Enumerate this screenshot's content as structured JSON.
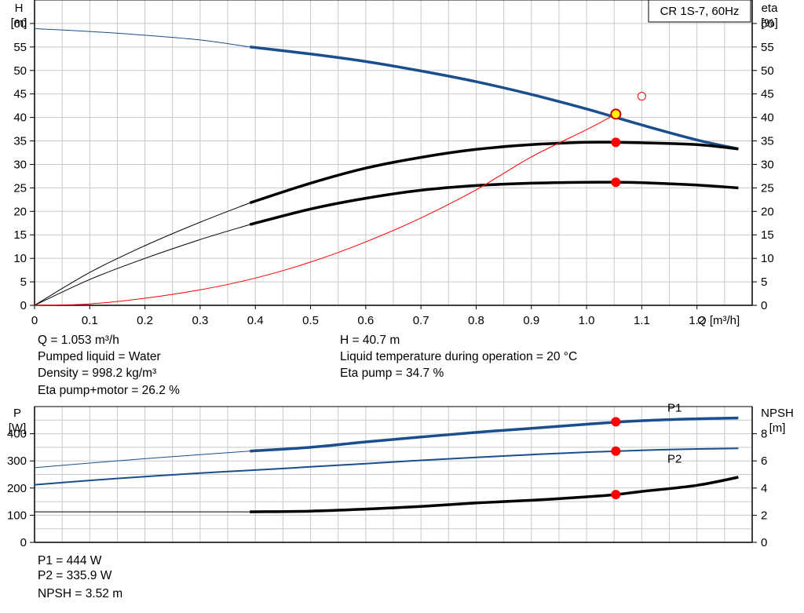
{
  "chart_data": [
    {
      "type": "line",
      "title": "CR 1S-7, 60Hz",
      "xlabel": "Q [m³/h]",
      "ylabel_left": [
        "H",
        "[m]"
      ],
      "ylabel_right": [
        "eta",
        "[%]"
      ],
      "xlim": [
        0,
        1.3
      ],
      "ylim": [
        0,
        65
      ],
      "x_ticks": [
        "0",
        "0.1",
        "0.2",
        "0.3",
        "0.4",
        "0.5",
        "0.6",
        "0.7",
        "0.8",
        "0.9",
        "1.0",
        "1.1",
        "1.2"
      ],
      "y_ticks": [
        "0",
        "5",
        "10",
        "15",
        "20",
        "25",
        "30",
        "35",
        "40",
        "45",
        "50",
        "55",
        "60"
      ],
      "grid": true,
      "series": [
        {
          "key": "H",
          "color": "#1a4e8c",
          "x": [
            0,
            0.1,
            0.2,
            0.3,
            0.39,
            0.5,
            0.6,
            0.7,
            0.8,
            0.9,
            1.0,
            1.1,
            1.2,
            1.275
          ],
          "y": [
            58.9,
            58.3,
            57.5,
            56.5,
            55.0,
            53.5,
            51.9,
            49.9,
            47.6,
            44.9,
            41.8,
            38.4,
            35.2,
            33.3
          ],
          "bold_from": 0.39
        },
        {
          "key": "eta_pump",
          "color": "#000000",
          "x": [
            0,
            0.1,
            0.2,
            0.3,
            0.39,
            0.5,
            0.6,
            0.7,
            0.8,
            0.9,
            1.0,
            1.053,
            1.1,
            1.2,
            1.275
          ],
          "y": [
            0,
            7.0,
            12.7,
            17.7,
            21.8,
            26.0,
            29.2,
            31.5,
            33.2,
            34.2,
            34.7,
            34.7,
            34.6,
            34.2,
            33.3
          ],
          "bold_from": 0.39
        },
        {
          "key": "eta_total",
          "color": "#000000",
          "x": [
            0,
            0.1,
            0.2,
            0.3,
            0.39,
            0.5,
            0.6,
            0.7,
            0.8,
            0.9,
            1.0,
            1.053,
            1.1,
            1.2,
            1.275
          ],
          "y": [
            0,
            5.5,
            10.0,
            14.0,
            17.2,
            20.5,
            22.8,
            24.5,
            25.5,
            26.0,
            26.2,
            26.2,
            26.1,
            25.6,
            25.0
          ],
          "bold_from": 0.39
        },
        {
          "key": "system_curve",
          "color": "#ff0000",
          "x": [
            0,
            0.1,
            0.2,
            0.3,
            0.4,
            0.5,
            0.6,
            0.7,
            0.8,
            0.9,
            1.0,
            1.053
          ],
          "y": [
            0,
            0.3,
            1.5,
            3.3,
            5.8,
            9.2,
            13.5,
            18.6,
            24.6,
            31.6,
            37.4,
            40.7
          ],
          "bold_from": null
        }
      ],
      "points": [
        {
          "key": "duty_point",
          "x": 1.053,
          "y": 40.7,
          "fill": "#ffff00",
          "stroke": "#cc0000"
        },
        {
          "key": "eta_pump_point",
          "x": 1.053,
          "y": 34.7,
          "fill": "#ff0000",
          "stroke": "#ff0000"
        },
        {
          "key": "eta_total_point",
          "x": 1.053,
          "y": 26.2,
          "fill": "#ff0000",
          "stroke": "#ff0000"
        },
        {
          "key": "open_marker",
          "x": 1.1,
          "y": 44.5,
          "fill": "#ffffff",
          "stroke": "#ff0000"
        }
      ]
    },
    {
      "type": "line",
      "xlim": [
        0,
        1.3
      ],
      "ylabel_left": [
        "P",
        "[W]"
      ],
      "ylabel_right": [
        "NPSH",
        "[m]"
      ],
      "ylim_left": [
        0,
        500
      ],
      "ylim_right": [
        0,
        10
      ],
      "y_ticks_left": [
        "0",
        "100",
        "200",
        "300",
        "400"
      ],
      "y_ticks_right": [
        "0",
        "2",
        "4",
        "6",
        "8"
      ],
      "grid": true,
      "series": [
        {
          "key": "P1",
          "name": "P1",
          "color": "#1a4e8c",
          "axis": "left",
          "x": [
            0,
            0.1,
            0.2,
            0.3,
            0.39,
            0.5,
            0.6,
            0.7,
            0.8,
            0.9,
            1.0,
            1.1,
            1.2,
            1.275
          ],
          "y": [
            275,
            292,
            308,
            323,
            336,
            350,
            370,
            388,
            405,
            420,
            435,
            448,
            455,
            458
          ],
          "bold_from": 0.39
        },
        {
          "key": "P2",
          "name": "P2",
          "color": "#1a4e8c",
          "axis": "left",
          "x": [
            0,
            0.1,
            0.2,
            0.3,
            0.39,
            0.5,
            0.6,
            0.7,
            0.8,
            0.9,
            1.0,
            1.1,
            1.2,
            1.275
          ],
          "y": [
            212,
            228,
            242,
            255,
            265,
            278,
            290,
            302,
            313,
            323,
            332,
            339,
            344,
            346
          ],
          "bold_from": null
        },
        {
          "key": "NPSH",
          "color": "#000000",
          "axis": "right",
          "x": [
            0,
            0.39,
            0.5,
            0.6,
            0.7,
            0.8,
            0.9,
            1.0,
            1.053,
            1.1,
            1.2,
            1.275
          ],
          "y": [
            2.25,
            2.25,
            2.3,
            2.45,
            2.65,
            2.9,
            3.1,
            3.35,
            3.52,
            3.75,
            4.2,
            4.8
          ],
          "bold_from": 0.39
        }
      ],
      "points": [
        {
          "key": "P1_point",
          "axis": "left",
          "x": 1.053,
          "y": 444,
          "fill": "#ff0000",
          "stroke": "#ff0000"
        },
        {
          "key": "P2_point",
          "axis": "left",
          "x": 1.053,
          "y": 335.9,
          "fill": "#ff0000",
          "stroke": "#ff0000"
        },
        {
          "key": "NPSH_point",
          "axis": "right",
          "x": 1.053,
          "y": 3.52,
          "fill": "#ff0000",
          "stroke": "#ff0000"
        }
      ]
    }
  ],
  "info_top": {
    "q": "Q = 1.053 m³/h",
    "liquid": "Pumped liquid = Water",
    "density": "Density = 998.2 kg/m³",
    "eta_total": "Eta pump+motor = 26.2 %",
    "h": "H = 40.7 m",
    "temperature": "Liquid temperature during operation = 20 °C",
    "eta_pump": "Eta pump = 34.7 %"
  },
  "info_bottom": {
    "p1": "P1 = 444 W",
    "p2": "P2 = 335.9 W",
    "npsh": "NPSH = 3.52 m"
  }
}
